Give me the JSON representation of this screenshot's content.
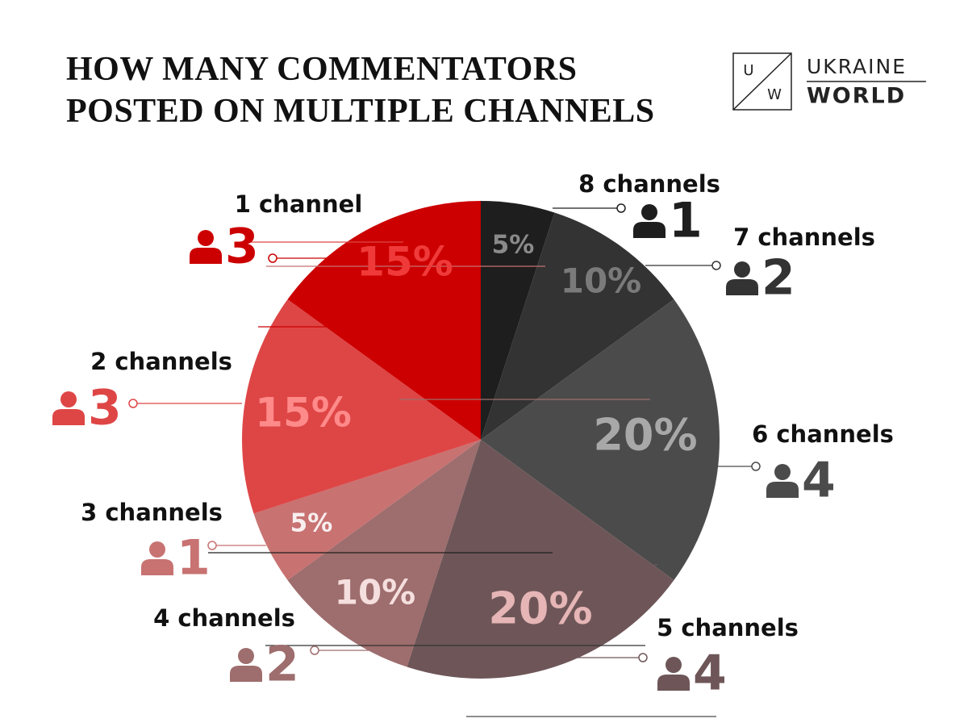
{
  "chart_data": {
    "type": "pie",
    "title": "HOW MANY COMMENTATORS POSTED ON MULTIPLE CHANNELS",
    "categories": [
      "8 channels",
      "7 channels",
      "6 channels",
      "5 channels",
      "4 channels",
      "3 channels",
      "2 channels",
      "1 channel"
    ],
    "values": [
      5,
      10,
      20,
      20,
      10,
      5,
      15,
      15
    ],
    "value_labels": [
      "5%",
      "10%",
      "20%",
      "20%",
      "10%",
      "5%",
      "15%",
      "15%"
    ],
    "counts": [
      1,
      2,
      4,
      4,
      2,
      1,
      3,
      3
    ],
    "colors": [
      "#1e1e1e",
      "#333333",
      "#4b4b4b",
      "#6e5658",
      "#9e6d6d",
      "#c87272",
      "#de4646",
      "#cc0000"
    ],
    "label_colors": [
      "#8a8a8a",
      "#7a7a7a",
      "#a8a8a8",
      "#e6b5b5",
      "#f5dede",
      "#f8eeee",
      "#ff8a8a",
      "#f03a3a"
    ]
  },
  "logo": {
    "letter_top": "U",
    "letter_bottom": "W",
    "line1": "UKRAINE",
    "line2": "WORLD"
  }
}
